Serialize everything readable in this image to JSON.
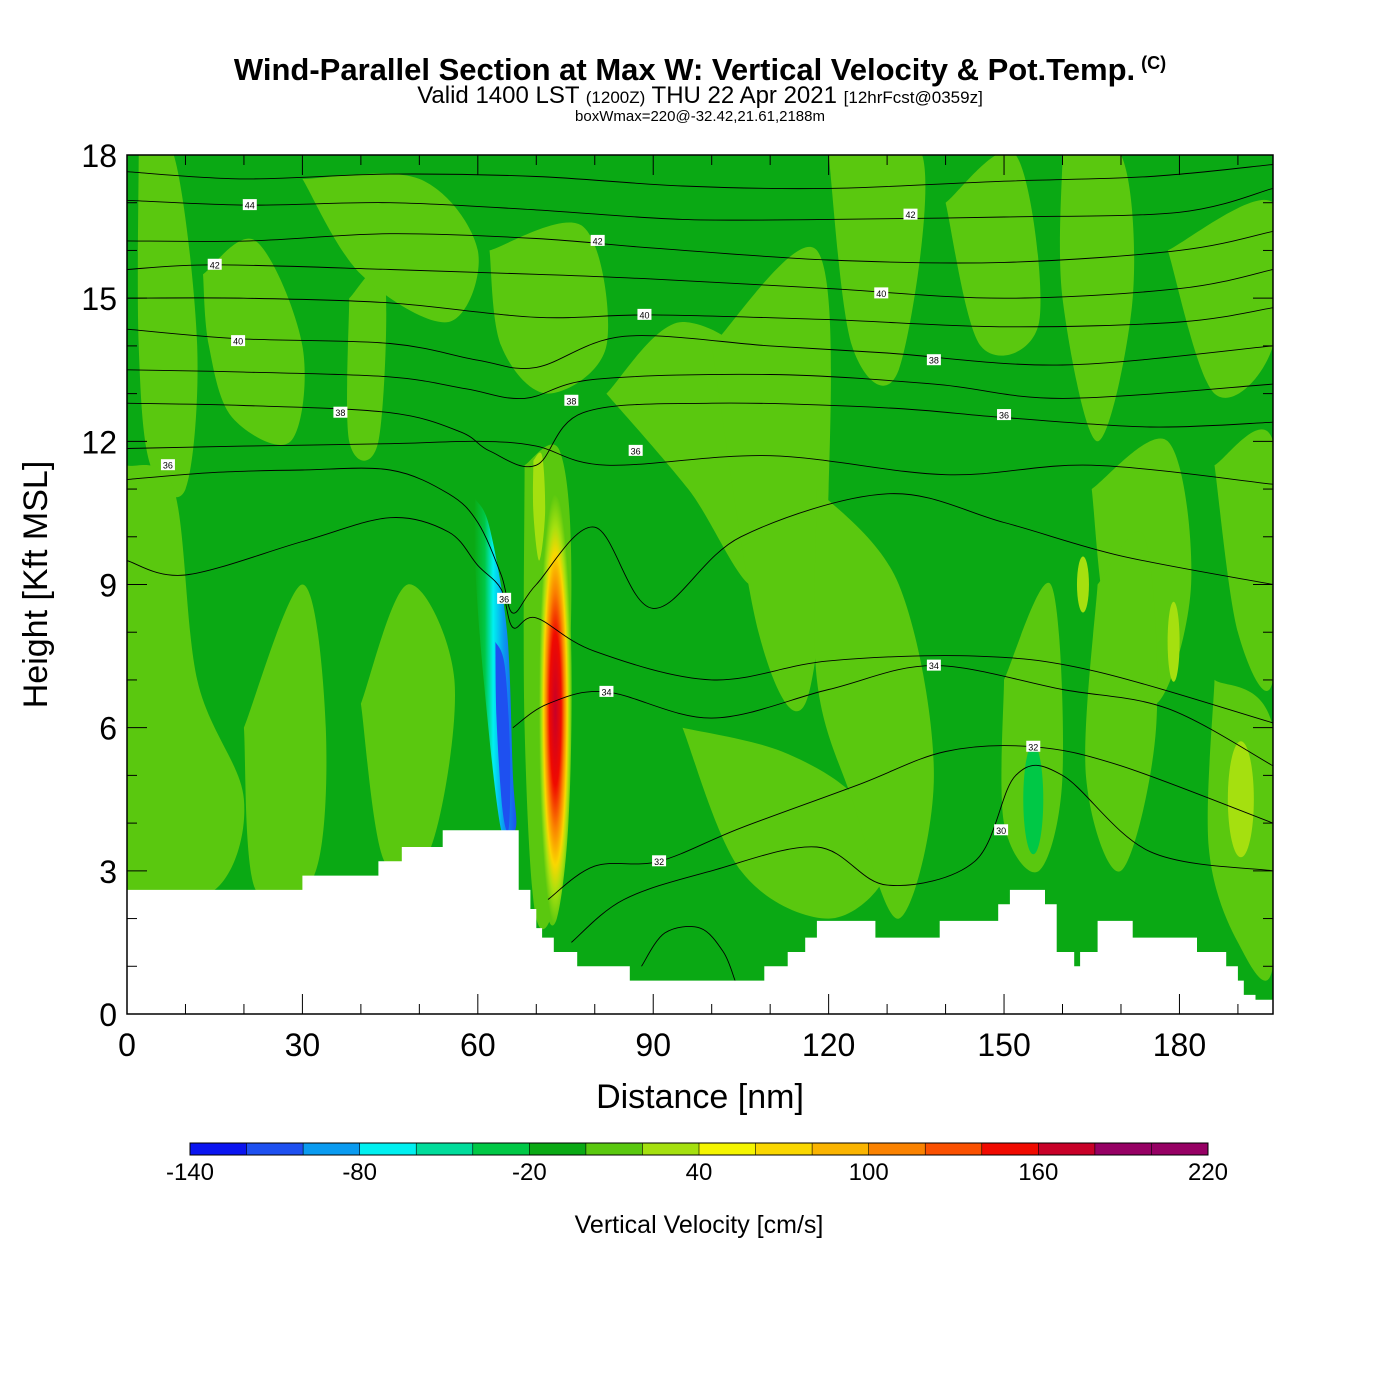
{
  "header": {
    "title": "Wind-Parallel Section at Max W: Vertical Velocity & Pot.Temp.",
    "copyright_mark": "(C)",
    "valid_prefix": "Valid 1400 LST",
    "valid_zulu": "(1200Z)",
    "valid_date": "THU 22 Apr 2021",
    "forecast": "[12hrFcst@0359z]",
    "box_info": "boxWmax=220@-32.42,21.61,2188m"
  },
  "chart_data": {
    "type": "heatmap",
    "title": "Wind-Parallel Section at Max W: Vertical Velocity & Pot.Temp.",
    "xlabel": "Distance [nm]",
    "ylabel": "Height [Kft MSL]",
    "xlim": [
      0,
      196
    ],
    "ylim": [
      0,
      18
    ],
    "x_ticks": [
      0,
      30,
      60,
      90,
      120,
      150,
      180
    ],
    "y_ticks": [
      0,
      3,
      6,
      9,
      12,
      15,
      18
    ],
    "colorbar": {
      "label": "Vertical Velocity [cm/s]",
      "min": -140,
      "max": 220,
      "step": 20,
      "tick_labels": [
        "-140",
        "-80",
        "-20",
        "40",
        "100",
        "160",
        "220"
      ],
      "colors": [
        "#0a14f0",
        "#1e50f0",
        "#0a9bf0",
        "#00f0f0",
        "#00dc9b",
        "#00c846",
        "#0aa914",
        "#5ac80f",
        "#a5e00f",
        "#f5f500",
        "#fad700",
        "#fab400",
        "#fa8200",
        "#fa5000",
        "#f00a00",
        "#c80028",
        "#960064"
      ]
    },
    "terrain_kft": [
      [
        0,
        2.6
      ],
      [
        30,
        2.6
      ],
      [
        30,
        2.9
      ],
      [
        43,
        2.9
      ],
      [
        43,
        3.2
      ],
      [
        47,
        3.2
      ],
      [
        47,
        3.5
      ],
      [
        54,
        3.5
      ],
      [
        54,
        3.85
      ],
      [
        64,
        3.85
      ],
      [
        64,
        3.85
      ],
      [
        67,
        3.85
      ],
      [
        67,
        2.6
      ],
      [
        69,
        2.6
      ],
      [
        69,
        2.2
      ],
      [
        70,
        2.2
      ],
      [
        70,
        1.8
      ],
      [
        71,
        1.8
      ],
      [
        71,
        1.6
      ],
      [
        73,
        1.6
      ],
      [
        73,
        1.3
      ],
      [
        77,
        1.3
      ],
      [
        77,
        1.0
      ],
      [
        86,
        1.0
      ],
      [
        86,
        0.7
      ],
      [
        98,
        0.7
      ],
      [
        109,
        0.7
      ],
      [
        109,
        1.0
      ],
      [
        113,
        1.0
      ],
      [
        113,
        1.3
      ],
      [
        116,
        1.3
      ],
      [
        116,
        1.6
      ],
      [
        118,
        1.6
      ],
      [
        118,
        1.95
      ],
      [
        128,
        1.95
      ],
      [
        128,
        1.6
      ],
      [
        139,
        1.6
      ],
      [
        139,
        1.95
      ],
      [
        149,
        1.95
      ],
      [
        149,
        2.3
      ],
      [
        151,
        2.3
      ],
      [
        151,
        2.6
      ],
      [
        157,
        2.6
      ],
      [
        157,
        2.3
      ],
      [
        159,
        2.3
      ],
      [
        159,
        1.3
      ],
      [
        162,
        1.3
      ],
      [
        162,
        1.0
      ],
      [
        163,
        1.0
      ],
      [
        163,
        1.3
      ],
      [
        166,
        1.3
      ],
      [
        166,
        1.95
      ],
      [
        172,
        1.95
      ],
      [
        172,
        1.6
      ],
      [
        183,
        1.6
      ],
      [
        183,
        1.3
      ],
      [
        188,
        1.3
      ],
      [
        188,
        1.0
      ],
      [
        190,
        1.0
      ],
      [
        190,
        0.7
      ],
      [
        191,
        0.7
      ],
      [
        191,
        0.4
      ],
      [
        193,
        0.4
      ],
      [
        193,
        0.3
      ],
      [
        196,
        0.3
      ]
    ],
    "isentrope_labels": [
      {
        "x": 21,
        "y": 16.95,
        "text": "44"
      },
      {
        "x": 15,
        "y": 15.7,
        "text": "42"
      },
      {
        "x": 80.5,
        "y": 16.2,
        "text": "42"
      },
      {
        "x": 134,
        "y": 16.75,
        "text": "42"
      },
      {
        "x": 19,
        "y": 14.1,
        "text": "40"
      },
      {
        "x": 88.5,
        "y": 14.65,
        "text": "40"
      },
      {
        "x": 129,
        "y": 15.1,
        "text": "40"
      },
      {
        "x": 36.5,
        "y": 12.6,
        "text": "38"
      },
      {
        "x": 76,
        "y": 12.85,
        "text": "38"
      },
      {
        "x": 138,
        "y": 13.7,
        "text": "38"
      },
      {
        "x": 7,
        "y": 11.5,
        "text": "36"
      },
      {
        "x": 87,
        "y": 11.8,
        "text": "36"
      },
      {
        "x": 150,
        "y": 12.55,
        "text": "36"
      },
      {
        "x": 64.5,
        "y": 8.7,
        "text": "36"
      },
      {
        "x": 82,
        "y": 6.75,
        "text": "34"
      },
      {
        "x": 138,
        "y": 7.3,
        "text": "34"
      },
      {
        "x": 155,
        "y": 5.6,
        "text": "32"
      },
      {
        "x": 91,
        "y": 3.2,
        "text": "32"
      },
      {
        "x": 149.5,
        "y": 3.85,
        "text": "30"
      }
    ],
    "isentrope_lines": [
      {
        "theta": 44,
        "points": [
          [
            0,
            17.65
          ],
          [
            20,
            17.5
          ],
          [
            45,
            17.6
          ],
          [
            70,
            17.55
          ],
          [
            95,
            17.35
          ],
          [
            120,
            17.3
          ],
          [
            150,
            17.45
          ],
          [
            175,
            17.55
          ],
          [
            196,
            17.8
          ]
        ]
      },
      {
        "theta": 44,
        "points": [
          [
            0,
            17.05
          ],
          [
            21,
            16.95
          ],
          [
            45,
            17.0
          ],
          [
            70,
            16.85
          ],
          [
            95,
            16.65
          ],
          [
            120,
            16.65
          ],
          [
            150,
            16.7
          ],
          [
            180,
            16.8
          ],
          [
            196,
            17.3
          ]
        ]
      },
      {
        "theta": 42,
        "points": [
          [
            0,
            16.2
          ],
          [
            21,
            16.2
          ],
          [
            45,
            16.35
          ],
          [
            70,
            16.25
          ],
          [
            90,
            16.05
          ],
          [
            120,
            15.8
          ],
          [
            150,
            15.75
          ],
          [
            180,
            16.0
          ],
          [
            196,
            16.4
          ]
        ]
      },
      {
        "theta": 42,
        "points": [
          [
            0,
            15.6
          ],
          [
            15,
            15.7
          ],
          [
            45,
            15.6
          ],
          [
            70,
            15.5
          ],
          [
            90,
            15.4
          ],
          [
            120,
            15.2
          ],
          [
            150,
            15.0
          ],
          [
            180,
            15.2
          ],
          [
            196,
            15.6
          ]
        ]
      },
      {
        "theta": 42,
        "points": [
          [
            0,
            15.0
          ],
          [
            20,
            15.0
          ],
          [
            45,
            14.9
          ],
          [
            70,
            14.6
          ],
          [
            90,
            14.65
          ],
          [
            120,
            14.55
          ],
          [
            150,
            14.4
          ],
          [
            180,
            14.5
          ],
          [
            196,
            14.8
          ]
        ]
      },
      {
        "theta": 40,
        "points": [
          [
            0,
            14.35
          ],
          [
            19,
            14.15
          ],
          [
            45,
            14.05
          ],
          [
            60,
            13.7
          ],
          [
            70,
            13.55
          ],
          [
            85,
            14.2
          ],
          [
            110,
            14.0
          ],
          [
            130,
            13.85
          ],
          [
            160,
            13.6
          ],
          [
            196,
            14.0
          ]
        ]
      },
      {
        "theta": 40,
        "points": [
          [
            0,
            13.5
          ],
          [
            20,
            13.45
          ],
          [
            45,
            13.35
          ],
          [
            58,
            13.1
          ],
          [
            68,
            12.9
          ],
          [
            80,
            13.3
          ],
          [
            110,
            13.4
          ],
          [
            138,
            13.2
          ],
          [
            160,
            12.9
          ],
          [
            196,
            13.2
          ]
        ]
      },
      {
        "theta": 38,
        "points": [
          [
            0,
            12.8
          ],
          [
            20,
            12.75
          ],
          [
            45,
            12.6
          ],
          [
            57,
            12.2
          ],
          [
            62,
            11.8
          ],
          [
            70,
            11.5
          ],
          [
            78,
            12.6
          ],
          [
            100,
            12.8
          ],
          [
            130,
            12.7
          ],
          [
            150,
            12.5
          ],
          [
            175,
            12.3
          ],
          [
            196,
            12.4
          ]
        ]
      },
      {
        "theta": 38,
        "points": [
          [
            0,
            11.85
          ],
          [
            20,
            11.9
          ],
          [
            45,
            11.95
          ],
          [
            60,
            12.0
          ],
          [
            70,
            11.9
          ],
          [
            82,
            11.5
          ],
          [
            110,
            11.7
          ],
          [
            140,
            11.3
          ],
          [
            165,
            11.5
          ],
          [
            196,
            11.1
          ]
        ]
      },
      {
        "theta": 36,
        "points": [
          [
            0,
            11.2
          ],
          [
            15,
            11.35
          ],
          [
            30,
            11.4
          ],
          [
            45,
            11.4
          ],
          [
            55,
            10.9
          ],
          [
            60,
            10.3
          ],
          [
            64,
            9.2
          ],
          [
            66,
            8.4
          ],
          [
            70,
            9.0
          ],
          [
            80,
            10.2
          ],
          [
            90,
            8.5
          ],
          [
            105,
            10.0
          ],
          [
            130,
            10.9
          ],
          [
            150,
            10.3
          ],
          [
            170,
            9.6
          ],
          [
            196,
            9.0
          ]
        ]
      },
      {
        "theta": 36,
        "points": [
          [
            0,
            9.5
          ],
          [
            10,
            9.2
          ],
          [
            30,
            9.9
          ],
          [
            45,
            10.4
          ],
          [
            55,
            10.1
          ],
          [
            60,
            9.4
          ],
          [
            64,
            8.9
          ],
          [
            66,
            8.1
          ],
          [
            70,
            8.3
          ],
          [
            80,
            7.6
          ],
          [
            100,
            7.0
          ],
          [
            120,
            7.4
          ],
          [
            145,
            7.5
          ],
          [
            165,
            7.2
          ],
          [
            196,
            6.1
          ]
        ]
      },
      {
        "theta": 34,
        "points": [
          [
            66,
            6.0
          ],
          [
            72,
            6.5
          ],
          [
            82,
            6.75
          ],
          [
            100,
            6.2
          ],
          [
            120,
            6.8
          ],
          [
            138,
            7.3
          ],
          [
            160,
            6.8
          ],
          [
            178,
            6.4
          ],
          [
            196,
            5.2
          ]
        ]
      },
      {
        "theta": 32,
        "points": [
          [
            72,
            2.4
          ],
          [
            80,
            3.1
          ],
          [
            91,
            3.2
          ],
          [
            105,
            3.9
          ],
          [
            125,
            4.8
          ],
          [
            140,
            5.5
          ],
          [
            155,
            5.6
          ],
          [
            170,
            5.2
          ],
          [
            196,
            4.0
          ]
        ]
      },
      {
        "theta": 32,
        "points": [
          [
            76,
            1.5
          ],
          [
            85,
            2.4
          ],
          [
            100,
            3.0
          ],
          [
            118,
            3.5
          ],
          [
            130,
            2.7
          ],
          [
            145,
            3.2
          ],
          [
            152,
            5.0
          ],
          [
            160,
            5.0
          ],
          [
            175,
            3.4
          ],
          [
            196,
            3.0
          ]
        ]
      },
      {
        "theta": 30,
        "points": [
          [
            88,
            1.0
          ],
          [
            92,
            1.7
          ],
          [
            98,
            1.8
          ],
          [
            102,
            1.3
          ],
          [
            104,
            0.7
          ]
        ]
      }
    ]
  },
  "colors": {
    "base_green": "#0aa914",
    "light_green": "#5ac80f",
    "terrain": "#ffffff",
    "frame": "#000000"
  }
}
